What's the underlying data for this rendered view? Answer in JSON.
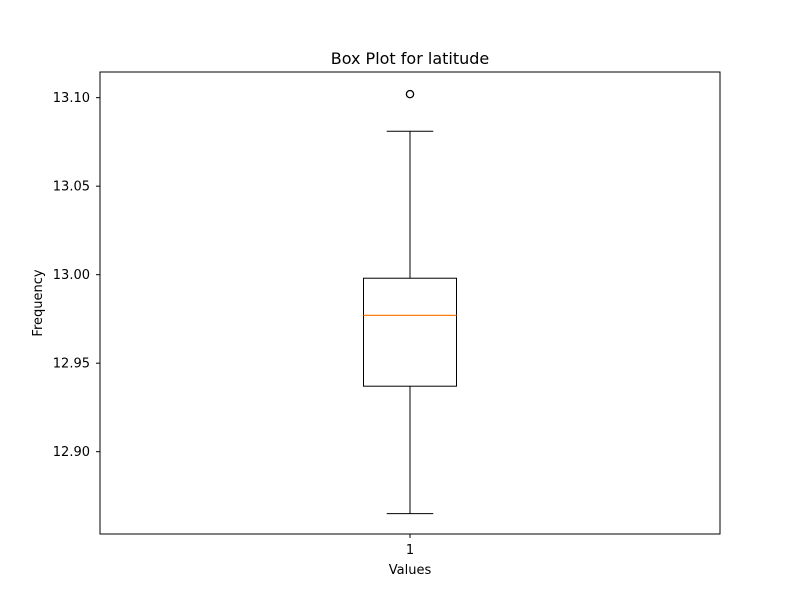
{
  "chart_data": {
    "type": "boxplot",
    "title": "Box Plot for latitude",
    "xlabel": "Values",
    "ylabel": "Frequency",
    "categories": [
      "1"
    ],
    "series": [
      {
        "whisker_low": 12.865,
        "q1": 12.937,
        "median": 12.977,
        "q3": 12.998,
        "whisker_high": 13.081,
        "outliers": [
          13.102
        ]
      }
    ],
    "ylim": [
      12.8535,
      13.1145
    ],
    "yticks": [
      12.9,
      12.95,
      13.0,
      13.05,
      13.1
    ],
    "ytick_labels": [
      "12.90",
      "12.95",
      "13.00",
      "13.05",
      "13.10"
    ],
    "grid": false,
    "colors": {
      "box": "#000000",
      "median": "#ff7f0e",
      "outlier": "#000000"
    }
  }
}
